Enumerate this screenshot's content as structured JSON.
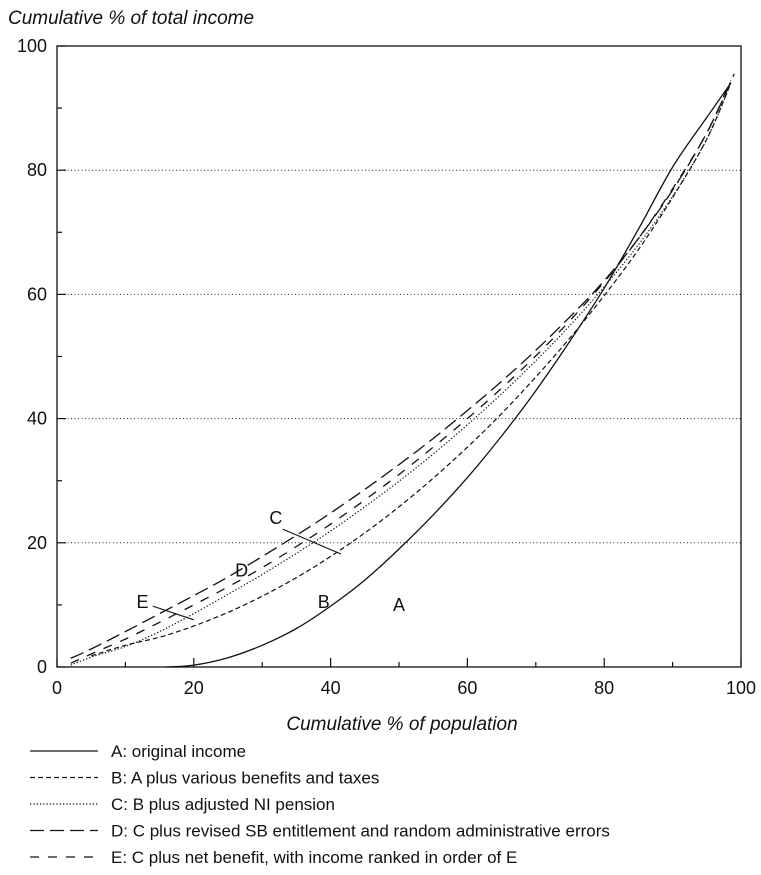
{
  "chart_data": {
    "type": "line",
    "title": "",
    "ylabel": "Cumulative % of total income",
    "xlabel": "Cumulative % of population",
    "xlim": [
      0,
      100
    ],
    "ylim": [
      0,
      100
    ],
    "x_ticks": [
      "0",
      "20",
      "40",
      "60",
      "80",
      "100"
    ],
    "y_ticks": [
      "0",
      "20",
      "40",
      "60",
      "80",
      "100"
    ],
    "grid": "horizontal dotted at 20, 40, 60, 80",
    "series": [
      {
        "name": "A: original income",
        "label": "A",
        "style": "solid",
        "points": [
          [
            16,
            0
          ],
          [
            20,
            0.3
          ],
          [
            25,
            1.5
          ],
          [
            30,
            3.5
          ],
          [
            35,
            6.2
          ],
          [
            40,
            9.8
          ],
          [
            45,
            14
          ],
          [
            50,
            19
          ],
          [
            55,
            24.5
          ],
          [
            60,
            30.5
          ],
          [
            65,
            37.2
          ],
          [
            70,
            44.5
          ],
          [
            75,
            52.5
          ],
          [
            80,
            61
          ],
          [
            85,
            70.5
          ],
          [
            90,
            80.5
          ],
          [
            95,
            88.5
          ],
          [
            98.5,
            94
          ]
        ]
      },
      {
        "name": "B: A plus various benefits and taxes",
        "label": "B",
        "style": "short-dash",
        "points": [
          [
            5,
            1.8
          ],
          [
            10,
            3.5
          ],
          [
            15,
            4.8
          ],
          [
            20,
            6.6
          ],
          [
            25,
            8.8
          ],
          [
            30,
            11.4
          ],
          [
            35,
            14.4
          ],
          [
            40,
            17.8
          ],
          [
            45,
            21.6
          ],
          [
            50,
            25.8
          ],
          [
            55,
            30.4
          ],
          [
            60,
            35.4
          ],
          [
            65,
            40.8
          ],
          [
            70,
            46.7
          ],
          [
            75,
            53
          ],
          [
            80,
            59.8
          ],
          [
            85,
            67.2
          ],
          [
            90,
            75.6
          ],
          [
            95,
            85
          ],
          [
            98.5,
            94
          ]
        ]
      },
      {
        "name": "C: B plus adjusted NI pension",
        "label": "C",
        "style": "dotted",
        "points": [
          [
            2,
            0.3
          ],
          [
            5,
            1.6
          ],
          [
            10,
            3.3
          ],
          [
            15,
            5.7
          ],
          [
            20,
            8.6
          ],
          [
            25,
            11.7
          ],
          [
            30,
            14.9
          ],
          [
            35,
            18.3
          ],
          [
            40,
            21.9
          ],
          [
            45,
            25.8
          ],
          [
            50,
            29.9
          ],
          [
            55,
            34.3
          ],
          [
            60,
            39
          ],
          [
            65,
            44
          ],
          [
            70,
            49.3
          ],
          [
            75,
            55
          ],
          [
            80,
            61.2
          ],
          [
            85,
            68
          ],
          [
            90,
            75.8
          ],
          [
            95,
            85
          ],
          [
            98.5,
            94
          ]
        ]
      },
      {
        "name": "D: C plus revised SB entitlement and random administrative errors",
        "label": "D",
        "style": "long-dash",
        "points": [
          [
            2,
            1.4
          ],
          [
            5,
            2.9
          ],
          [
            10,
            5.7
          ],
          [
            15,
            8.6
          ],
          [
            20,
            11.5
          ],
          [
            25,
            14.5
          ],
          [
            30,
            17.8
          ],
          [
            35,
            21.2
          ],
          [
            40,
            24.8
          ],
          [
            45,
            28.6
          ],
          [
            50,
            32.6
          ],
          [
            55,
            36.8
          ],
          [
            60,
            41.3
          ],
          [
            65,
            46
          ],
          [
            70,
            51
          ],
          [
            75,
            56.4
          ],
          [
            80,
            62.2
          ],
          [
            85,
            69
          ],
          [
            90,
            76.8
          ],
          [
            95,
            86
          ],
          [
            99,
            95.5
          ]
        ]
      },
      {
        "name": "E: C plus net benefit, with income ranked in order of E",
        "label": "E",
        "style": "dash-gap",
        "points": [
          [
            2,
            0.6
          ],
          [
            5,
            2.1
          ],
          [
            10,
            4.5
          ],
          [
            15,
            7.2
          ],
          [
            20,
            10
          ],
          [
            25,
            12.9
          ],
          [
            30,
            16
          ],
          [
            35,
            19.4
          ],
          [
            40,
            23
          ],
          [
            45,
            26.9
          ],
          [
            50,
            31
          ],
          [
            55,
            35.4
          ],
          [
            60,
            40
          ],
          [
            65,
            44.9
          ],
          [
            70,
            50.1
          ],
          [
            75,
            55.8
          ],
          [
            80,
            62
          ],
          [
            85,
            69
          ],
          [
            90,
            77
          ],
          [
            95,
            86
          ],
          [
            98.5,
            94.5
          ]
        ]
      }
    ],
    "curve_labels": [
      {
        "text": "A",
        "x": 50,
        "y": 10
      },
      {
        "text": "B",
        "x": 39,
        "y": 10.5
      },
      {
        "text": "C",
        "x": 32,
        "y": 24
      },
      {
        "text": "D",
        "x": 27,
        "y": 15.5
      },
      {
        "text": "E",
        "x": 12.5,
        "y": 10.5
      }
    ],
    "legend_placement": "bottom"
  }
}
